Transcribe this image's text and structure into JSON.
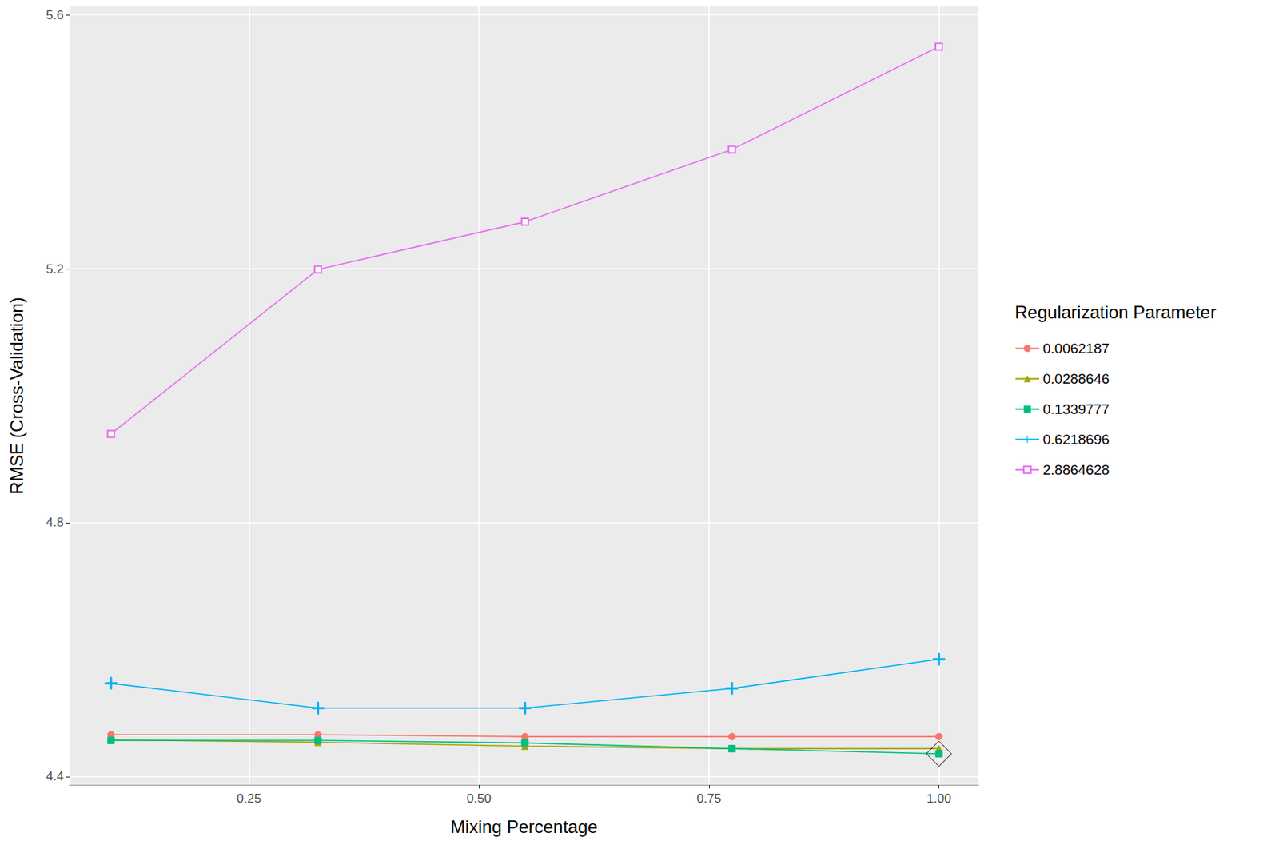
{
  "chart_data": {
    "type": "line",
    "x_label": "Mixing Percentage",
    "y_label": "RMSE (Cross-Validation)",
    "legend_title": "Regularization Parameter",
    "legend": "right",
    "grid": true,
    "x": [
      0.1,
      0.325,
      0.55,
      0.775,
      1.0
    ],
    "xlim": [
      0.055,
      1.043
    ],
    "xticks": [
      {
        "value": 0.25,
        "label": "0.25"
      },
      {
        "value": 0.5,
        "label": "0.50"
      },
      {
        "value": 0.75,
        "label": "0.75"
      },
      {
        "value": 1,
        "label": "1.00"
      }
    ],
    "ylim": [
      4.387,
      5.613
    ],
    "yticks": [
      4.4,
      4.8,
      5.2,
      5.6
    ],
    "series": [
      {
        "name": "0.0062187",
        "color": "#F8766D",
        "marker": "circle",
        "values": [
          4.466,
          4.466,
          4.463,
          4.463,
          4.463
        ]
      },
      {
        "name": "0.0288646",
        "color": "#A3A500",
        "marker": "triangle",
        "values": [
          4.458,
          4.454,
          4.448,
          4.444,
          4.444
        ]
      },
      {
        "name": "0.1339777",
        "color": "#00BF7D",
        "marker": "square",
        "values": [
          4.457,
          4.457,
          4.453,
          4.444,
          4.436
        ]
      },
      {
        "name": "0.6218696",
        "color": "#00B0F6",
        "marker": "plus",
        "values": [
          4.547,
          4.508,
          4.508,
          4.539,
          4.585
        ]
      },
      {
        "name": "2.8864628",
        "color": "#E76BF3",
        "marker": "square-cross",
        "values": [
          4.94,
          5.199,
          5.274,
          5.388,
          5.55
        ]
      }
    ]
  }
}
